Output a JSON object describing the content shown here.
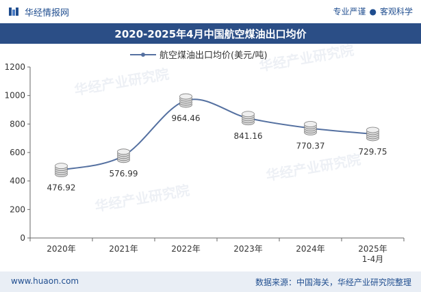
{
  "header": {
    "brand": "华经情报网",
    "slogan_left": "专业严谨",
    "slogan_right": "客观科学"
  },
  "colors": {
    "title_bg": "#2b4e86",
    "line": "#5470a0",
    "footer_bg": "#e9eef5"
  },
  "footer": {
    "website": "www.huaon.com",
    "source": "数据来源：中国海关，华经产业研究院整理"
  },
  "chart_data": {
    "type": "line",
    "title": "2020-2025年4月中国航空煤油出口均价",
    "categories": [
      "2020年",
      "2021年",
      "2022年",
      "2023年",
      "2024年",
      "2025年 1-4月"
    ],
    "series": [
      {
        "name": "航空煤油出口均价(美元/吨)",
        "values": [
          476.92,
          576.99,
          964.46,
          841.16,
          770.37,
          729.75
        ]
      }
    ],
    "data_labels": [
      "476.92",
      "576.99",
      "964.46",
      "841.16",
      "770.37",
      "729.75"
    ],
    "yticks": [
      0,
      200,
      400,
      600,
      800,
      1000,
      1200
    ],
    "ylim": [
      0,
      1200
    ],
    "legend_position": "top-center",
    "smooth": true,
    "grid": false
  }
}
